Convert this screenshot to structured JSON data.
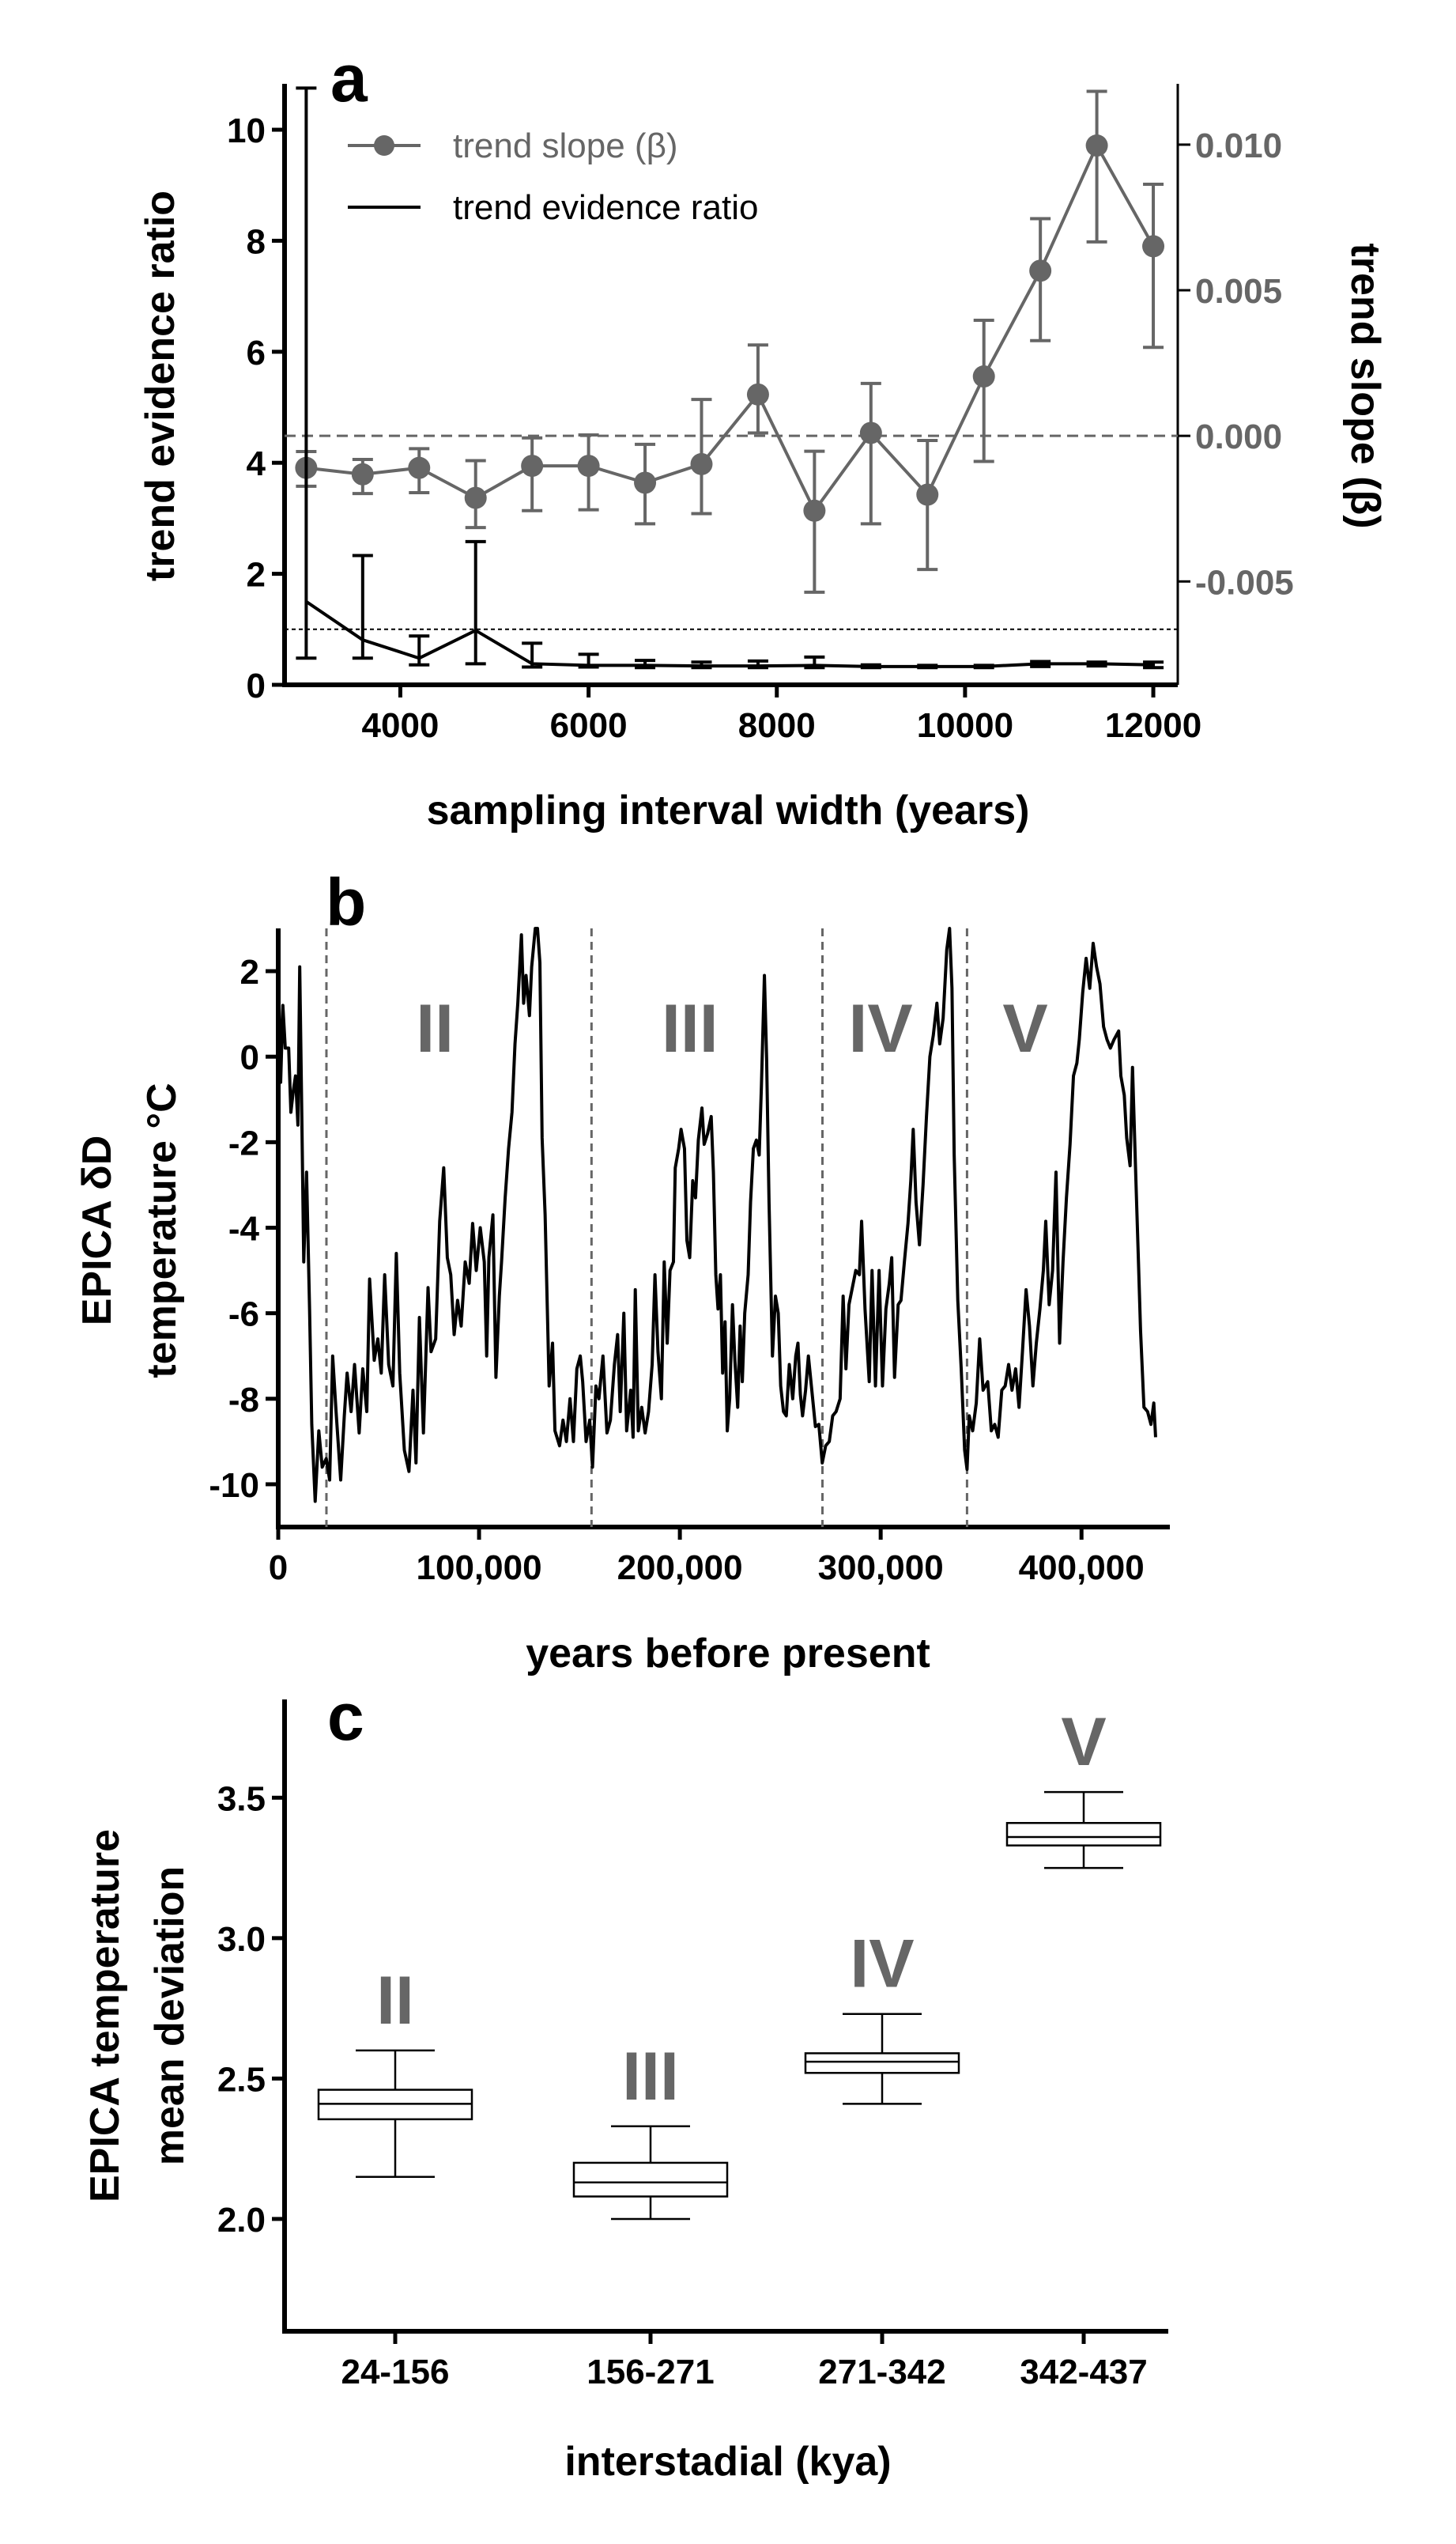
{
  "chart_data": [
    {
      "panel": "a",
      "type": "line",
      "xlabel": "sampling interval width (years)",
      "ylabel": "trend evidence ratio",
      "y2label": "trend slope (β)",
      "xlim": [
        2770,
        12260
      ],
      "ylim": [
        0,
        10.77
      ],
      "y2lim": [
        -0.00855,
        0.01198
      ],
      "xticks": [
        4000,
        6000,
        8000,
        10000,
        12000
      ],
      "yticks": [
        0,
        2,
        4,
        6,
        8,
        10
      ],
      "y2ticks": [
        0.01,
        0.005,
        0.0,
        -0.005
      ],
      "y2tick_labels": [
        "0.010",
        "0.005",
        "0.000",
        "-0.005"
      ],
      "legend_placement": "top-left",
      "reference_lines": [
        {
          "axis": "y",
          "value": 1,
          "style": "dotted"
        },
        {
          "axis": "y2",
          "value": 0,
          "style": "dashed"
        }
      ],
      "x": [
        3000,
        3600,
        4200,
        4800,
        5400,
        6000,
        6600,
        7200,
        7800,
        8400,
        9000,
        9600,
        10200,
        10800,
        11400,
        12000
      ],
      "series": [
        {
          "name": "trend slope (β)",
          "axis": "right",
          "color": "#666666",
          "marker": "circle",
          "values": [
            -0.0011,
            -0.00132,
            -0.0011,
            -0.00213,
            -0.00103,
            -0.00103,
            -0.00161,
            -0.00097,
            0.00142,
            -0.00257,
            0.0001,
            -0.00202,
            0.00204,
            0.00567,
            0.00997,
            0.00651
          ],
          "err_high": [
            -0.00054,
            -0.00081,
            -0.00044,
            -0.00085,
            -7e-05,
            3e-05,
            -0.00029,
            0.00125,
            0.00312,
            -0.00053,
            0.0018,
            -0.00016,
            0.00397,
            0.00746,
            0.01183,
            0.00864
          ],
          "err_low": [
            -0.00173,
            -0.00198,
            -0.00195,
            -0.00315,
            -0.00257,
            -0.00254,
            -0.00302,
            -0.00267,
            0.0001,
            -0.00537,
            -0.00302,
            -0.00459,
            -0.00088,
            0.00327,
            0.00666,
            0.00304
          ]
        },
        {
          "name": "trend evidence ratio",
          "axis": "left",
          "color": "#000000",
          "values": [
            1.5,
            0.81,
            0.48,
            0.98,
            0.38,
            0.35,
            0.35,
            0.34,
            0.34,
            0.35,
            0.33,
            0.33,
            0.33,
            0.38,
            0.38,
            0.36
          ],
          "err_high": [
            10.75,
            2.33,
            0.88,
            2.58,
            0.75,
            0.55,
            0.44,
            0.41,
            0.43,
            0.5,
            0.36,
            0.35,
            0.35,
            0.42,
            0.41,
            0.41
          ],
          "err_low": [
            0.48,
            0.48,
            0.36,
            0.38,
            0.32,
            0.32,
            0.31,
            0.31,
            0.31,
            0.31,
            0.31,
            0.31,
            0.31,
            0.33,
            0.34,
            0.31
          ]
        }
      ]
    },
    {
      "panel": "b",
      "type": "line",
      "xlabel": "years before present",
      "ylabel_lines": [
        "EPICA δD",
        "temperature °C"
      ],
      "xlim": [
        0,
        444000
      ],
      "ylim": [
        -11,
        3
      ],
      "xticks": [
        0,
        100000,
        200000,
        300000,
        400000
      ],
      "xtick_labels": [
        "0",
        "100,000",
        "200,000",
        "300,000",
        "400,000"
      ],
      "yticks": [
        2,
        0,
        -2,
        -4,
        -6,
        -8,
        -10
      ],
      "boundaries": [
        24000,
        156000,
        271000,
        343000
      ],
      "region_labels": [
        {
          "label": "II",
          "x": 78000
        },
        {
          "label": "III",
          "x": 205000
        },
        {
          "label": "IV",
          "x": 300000
        },
        {
          "label": "V",
          "x": 372000
        }
      ],
      "x": [
        0,
        1200,
        2300,
        3500,
        5200,
        6300,
        7500,
        8600,
        9800,
        10700,
        11800,
        12700,
        14100,
        15600,
        16700,
        18400,
        20200,
        21900,
        23900,
        25600,
        27100,
        28800,
        31100,
        32900,
        34300,
        36300,
        38000,
        40300,
        42100,
        44100,
        45500,
        47800,
        49600,
        51300,
        53000,
        55000,
        57100,
        58800,
        60500,
        62800,
        65100,
        67100,
        68600,
        70300,
        72300,
        74600,
        76100,
        78400,
        80400,
        82400,
        84200,
        85900,
        87600,
        89300,
        91100,
        93100,
        95100,
        96800,
        98600,
        100600,
        102600,
        103800,
        104900,
        106900,
        108400,
        110100,
        111200,
        113000,
        114700,
        116400,
        117900,
        119300,
        121100,
        122200,
        123400,
        125100,
        126200,
        128000,
        129100,
        130300,
        131400,
        132900,
        134900,
        136600,
        137800,
        140100,
        141800,
        143500,
        145300,
        147000,
        148700,
        150400,
        151600,
        153300,
        155100,
        156500,
        158200,
        159700,
        161700,
        163700,
        165400,
        167400,
        169000,
        170300,
        172100,
        173500,
        175500,
        176700,
        177800,
        179300,
        181000,
        182700,
        184400,
        186200,
        187600,
        189100,
        190800,
        192200,
        193700,
        195100,
        196800,
        197700,
        199400,
        200600,
        202300,
        203500,
        204900,
        206400,
        207800,
        209200,
        211000,
        212100,
        213800,
        215600,
        216700,
        217900,
        219000,
        220200,
        221300,
        222500,
        223600,
        224800,
        226200,
        227400,
        228800,
        230000,
        231100,
        232300,
        234000,
        235200,
        236600,
        238100,
        239500,
        240600,
        242100,
        243200,
        244400,
        246100,
        247600,
        249000,
        250200,
        251600,
        253000,
        254500,
        256200,
        257700,
        258800,
        260000,
        261100,
        262600,
        264000,
        265700,
        267500,
        269200,
        270900,
        272600,
        274400,
        276100,
        277800,
        279800,
        281300,
        282700,
        284200,
        285900,
        287600,
        289400,
        290500,
        292200,
        294300,
        295700,
        297400,
        299200,
        300900,
        302600,
        304300,
        305500,
        306900,
        308700,
        310100,
        311800,
        313600,
        315000,
        316200,
        317600,
        319300,
        321100,
        322800,
        324500,
        326200,
        328000,
        329400,
        331100,
        332900,
        334300,
        335500,
        336600,
        338400,
        340100,
        341800,
        343000,
        344100,
        345800,
        347600,
        349300,
        351000,
        353300,
        355100,
        356800,
        358500,
        360300,
        362000,
        363700,
        365400,
        367200,
        368900,
        370600,
        372400,
        374100,
        375800,
        377500,
        379300,
        381000,
        382200,
        383900,
        385600,
        387300,
        389100,
        390800,
        392500,
        394300,
        396000,
        397700,
        398900,
        400600,
        402300,
        404100,
        405800,
        407500,
        409200,
        411000,
        412700,
        414400,
        416200,
        418500,
        419600,
        421300,
        422500,
        424200,
        425400,
        427100,
        428300,
        429400,
        431100,
        432900,
        434600,
        436000,
        436900
      ],
      "values": [
        2.0,
        -0.6,
        1.2,
        0.2,
        0.2,
        -1.3,
        -0.8,
        -0.45,
        -1.6,
        2.1,
        -1.6,
        -4.8,
        -2.7,
        -5.9,
        -8.6,
        -10.4,
        -8.75,
        -9.6,
        -9.4,
        -9.9,
        -7.0,
        -8.3,
        -9.9,
        -8.4,
        -7.4,
        -8.3,
        -7.2,
        -8.8,
        -7.3,
        -8.3,
        -5.2,
        -7.1,
        -6.6,
        -7.4,
        -5.1,
        -7.2,
        -7.7,
        -4.6,
        -7.4,
        -9.2,
        -9.7,
        -7.8,
        -9.5,
        -6.1,
        -8.8,
        -5.4,
        -6.9,
        -6.6,
        -3.85,
        -2.6,
        -4.7,
        -5.1,
        -6.5,
        -5.7,
        -6.3,
        -4.8,
        -5.3,
        -3.9,
        -5.0,
        -4.0,
        -4.8,
        -7.0,
        -4.7,
        -3.7,
        -7.5,
        -5.6,
        -4.8,
        -3.3,
        -2.15,
        -1.3,
        0.3,
        1.25,
        2.85,
        1.25,
        1.9,
        0.96,
        2.1,
        3.0,
        3.0,
        2.2,
        -1.9,
        -3.7,
        -7.7,
        -6.7,
        -8.75,
        -9.1,
        -8.5,
        -9.0,
        -8.0,
        -9.0,
        -7.3,
        -7.0,
        -7.6,
        -9.0,
        -8.5,
        -9.6,
        -7.7,
        -8.0,
        -7.0,
        -8.8,
        -8.5,
        -7.2,
        -6.5,
        -8.3,
        -6.0,
        -8.75,
        -7.8,
        -8.9,
        -5.45,
        -8.75,
        -8.2,
        -8.8,
        -8.3,
        -7.2,
        -5.1,
        -6.9,
        -8.0,
        -4.8,
        -6.7,
        -5.0,
        -4.8,
        -2.6,
        -2.15,
        -1.7,
        -2.15,
        -4.3,
        -4.7,
        -2.9,
        -3.3,
        -1.95,
        -1.2,
        -2.05,
        -1.8,
        -1.4,
        -2.7,
        -5.1,
        -5.9,
        -5.1,
        -7.4,
        -6.2,
        -8.75,
        -8.0,
        -5.8,
        -7.1,
        -8.2,
        -6.3,
        -7.6,
        -6.0,
        -5.1,
        -3.4,
        -2.15,
        -1.95,
        -2.3,
        -0.7,
        1.9,
        -0.05,
        -3.4,
        -7.0,
        -5.6,
        -6.0,
        -7.7,
        -8.3,
        -8.4,
        -7.2,
        -8.0,
        -7.0,
        -6.7,
        -7.9,
        -8.4,
        -7.8,
        -7.0,
        -7.8,
        -8.65,
        -8.6,
        -9.5,
        -9.1,
        -9.0,
        -8.4,
        -8.3,
        -8.0,
        -5.6,
        -7.3,
        -5.8,
        -5.4,
        -5.0,
        -5.1,
        -3.85,
        -5.9,
        -7.6,
        -5.0,
        -7.7,
        -5.0,
        -7.7,
        -5.9,
        -5.3,
        -4.7,
        -7.5,
        -5.8,
        -5.7,
        -4.8,
        -3.9,
        -2.9,
        -1.7,
        -3.4,
        -4.4,
        -3.0,
        -1.4,
        0.0,
        0.5,
        1.25,
        0.3,
        0.9,
        2.5,
        3.0,
        1.6,
        -2.3,
        -5.7,
        -7.3,
        -9.2,
        -9.65,
        -8.4,
        -8.75,
        -8.1,
        -6.6,
        -7.8,
        -7.6,
        -8.75,
        -8.6,
        -8.9,
        -7.8,
        -7.7,
        -7.2,
        -7.8,
        -7.3,
        -8.2,
        -6.9,
        -5.45,
        -6.3,
        -7.7,
        -6.7,
        -5.9,
        -5.0,
        -3.85,
        -5.8,
        -5.0,
        -2.7,
        -6.7,
        -4.8,
        -3.3,
        -2.05,
        -0.45,
        -0.15,
        0.4,
        1.5,
        2.3,
        1.6,
        2.65,
        2.1,
        1.7,
        0.7,
        0.4,
        0.2,
        0.4,
        0.6,
        -0.45,
        -0.9,
        -1.9,
        -2.55,
        -0.25,
        -2.9,
        -4.7,
        -6.4,
        -8.2,
        -8.3,
        -8.6,
        -8.1,
        -8.9
      ]
    },
    {
      "panel": "c",
      "type": "box",
      "xlabel": "interstadial (kya)",
      "ylabel_lines": [
        "EPICA temperature",
        "mean deviation"
      ],
      "ylim": [
        1.6,
        3.85
      ],
      "yticks": [
        2.0,
        2.5,
        3.0,
        3.5
      ],
      "ytick_labels": [
        "2.0",
        "2.5",
        "3.0",
        "3.5"
      ],
      "categories": [
        "24-156",
        "156-271",
        "271-342",
        "342-437"
      ],
      "box_labels": [
        "II",
        "III",
        "IV",
        "V"
      ],
      "boxes": [
        {
          "whisker_low": 2.15,
          "q1": 2.355,
          "median": 2.41,
          "q3": 2.46,
          "whisker_high": 2.6
        },
        {
          "whisker_low": 2.0,
          "q1": 2.08,
          "median": 2.13,
          "q3": 2.2,
          "whisker_high": 2.33
        },
        {
          "whisker_low": 2.41,
          "q1": 2.52,
          "median": 2.56,
          "q3": 2.59,
          "whisker_high": 2.73
        },
        {
          "whisker_low": 3.25,
          "q1": 3.33,
          "median": 3.36,
          "q3": 3.41,
          "whisker_high": 3.52
        }
      ]
    }
  ],
  "panel_letters": [
    "a",
    "b",
    "c"
  ]
}
